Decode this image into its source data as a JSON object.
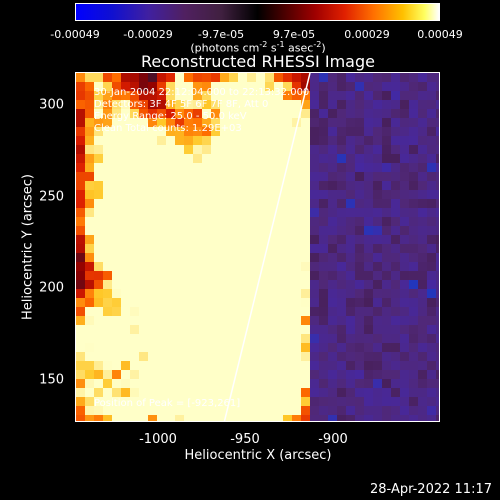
{
  "colorbar": {
    "ticks": [
      "-0.00049",
      "-0.00029",
      "-9.7e-05",
      "9.7e-05",
      "0.00029",
      "0.00049"
    ],
    "units_main": "(photons cm",
    "units_exp1": "-2",
    "units_mid": " s",
    "units_exp2": "-1",
    "units_mid2": " asec",
    "units_exp3": "-2",
    "units_end": ")"
  },
  "title": "Reconstructed RHESSI Image",
  "info": {
    "time_range": "30-Jan-2004 22:12:04.000 to 22:13:32.000",
    "detectors": "Detectors: 3F 4F 5F 6F 7F 8F, Att 0",
    "energy": "Energy Range: 25.0 - 50.0 keV",
    "clean": "Clean     Total counts: 1.29E+03"
  },
  "peak_text": "Position of Peak = [-923,261]",
  "axes": {
    "x_label": "Heliocentric X (arcsec)",
    "y_label": "Heliocentric Y (arcsec)",
    "x_ticks": [
      "-1000",
      "-950",
      "-900"
    ],
    "y_ticks": [
      "300",
      "250",
      "200",
      "150"
    ]
  },
  "timestamp": "28-Apr-2022 11:17"
}
